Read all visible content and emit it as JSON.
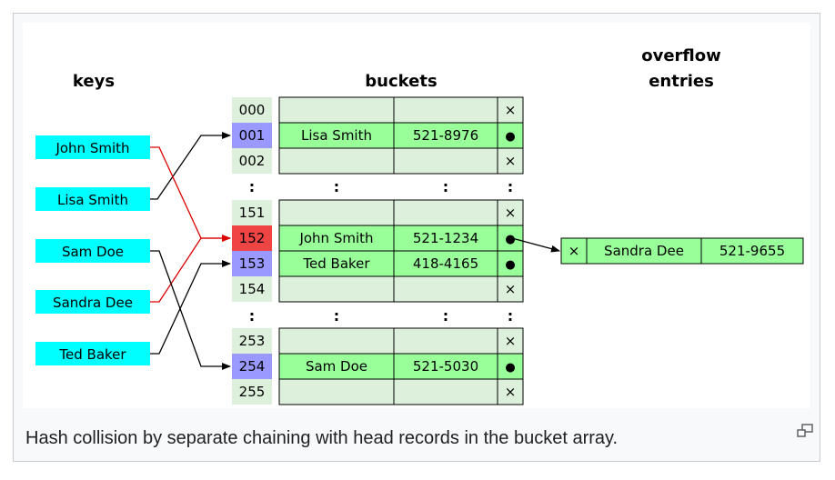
{
  "headings": {
    "keys": "keys",
    "buckets": "buckets",
    "overflow_line1": "overflow",
    "overflow_line2": "entries"
  },
  "keys": [
    "John Smith",
    "Lisa Smith",
    "Sam Doe",
    "Sandra Dee",
    "Ted Baker"
  ],
  "buckets": [
    {
      "index": "000",
      "name": "",
      "phone": "",
      "ptr": "×"
    },
    {
      "index": "001",
      "name": "Lisa Smith",
      "phone": "521-8976",
      "ptr": "●"
    },
    {
      "index": "002",
      "name": "",
      "phone": "",
      "ptr": "×"
    },
    {
      "index": "151",
      "name": "",
      "phone": "",
      "ptr": "×"
    },
    {
      "index": "152",
      "name": "John Smith",
      "phone": "521-1234",
      "ptr": "●"
    },
    {
      "index": "153",
      "name": "Ted Baker",
      "phone": "418-4165",
      "ptr": "●"
    },
    {
      "index": "154",
      "name": "",
      "phone": "",
      "ptr": "×"
    },
    {
      "index": "253",
      "name": "",
      "phone": "",
      "ptr": "×"
    },
    {
      "index": "254",
      "name": "Sam Doe",
      "phone": "521-5030",
      "ptr": "●"
    },
    {
      "index": "255",
      "name": "",
      "phone": "",
      "ptr": "×"
    }
  ],
  "ellipsis": ":",
  "overflow": {
    "ptr": "×",
    "name": "Sandra Dee",
    "phone": "521-9655"
  },
  "caption": "Hash collision by separate chaining with head records in the bucket array.",
  "colors": {
    "key_fill": "#00ffff",
    "index_fill": "#dcf0dc",
    "index_hit": "#9999ff",
    "index_collision": "#ee4444",
    "empty_cell": "#dcf0dc",
    "filled_cell": "#99ff99",
    "arrow_black": "#000000",
    "arrow_red": "#dd0000"
  },
  "icons": {
    "enlarge": "enlarge-icon"
  }
}
